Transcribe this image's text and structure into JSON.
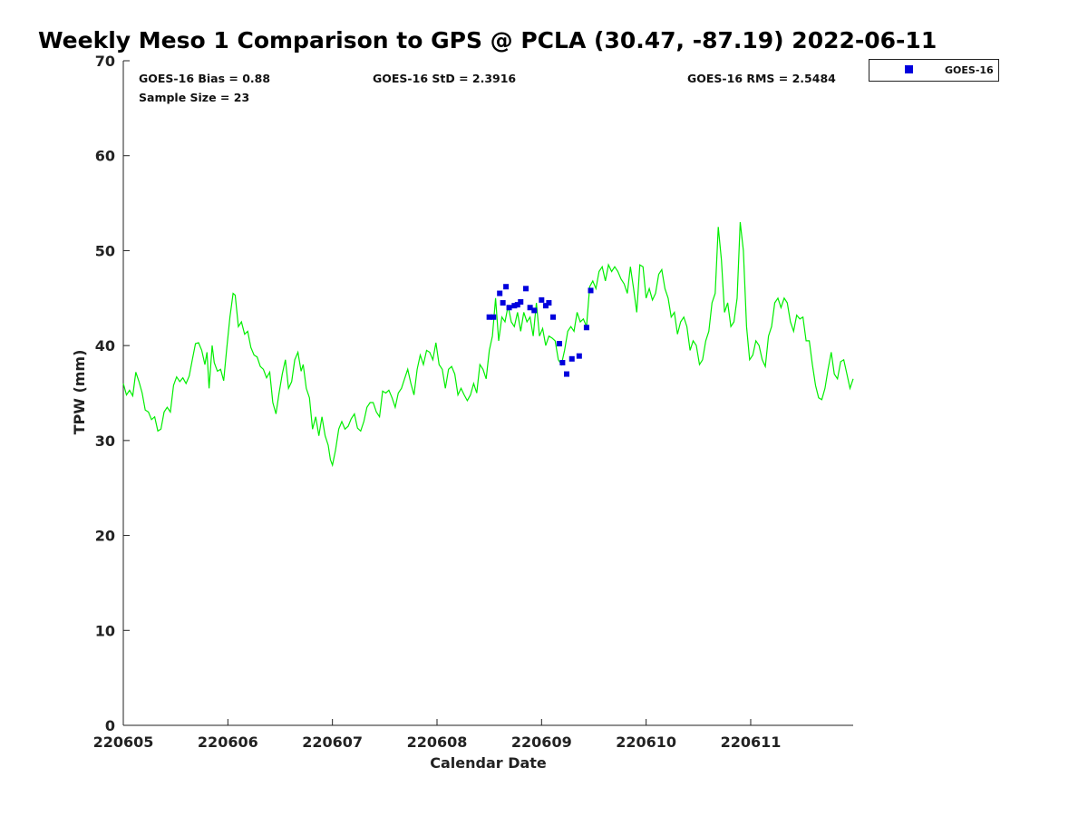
{
  "chart_data": {
    "type": "scatter",
    "title": "Weekly Meso 1 Comparison to GPS @ PCLA (30.47, -87.19) 2022-06-11",
    "xlabel": "Calendar Date",
    "ylabel": "TPW (mm)",
    "xlim": [
      0,
      6.98
    ],
    "ylim": [
      0,
      70
    ],
    "x_ticks": [
      0,
      1,
      2,
      3,
      4,
      5,
      6
    ],
    "x_tick_labels": [
      "220605",
      "220606",
      "220607",
      "220608",
      "220609",
      "220610",
      "220611"
    ],
    "y_ticks": [
      0,
      10,
      20,
      30,
      40,
      50,
      60,
      70
    ],
    "y_tick_labels": [
      "0",
      "10",
      "20",
      "30",
      "40",
      "50",
      "60",
      "70"
    ],
    "x_units": "days since 220605",
    "grid": false,
    "legend_position": "top-right-outside",
    "stats": {
      "bias": "GOES-16 Bias = 0.88",
      "std": "GOES-16 StD = 2.3916",
      "rms": "GOES-16 RMS = 2.5484",
      "sample_size": "Sample Size = 23"
    },
    "series": [
      {
        "name": "GPS",
        "kind": "line",
        "color": "#00ee00",
        "points": [
          [
            0.0,
            36.0
          ],
          [
            0.03,
            34.8
          ],
          [
            0.06,
            35.3
          ],
          [
            0.09,
            34.7
          ],
          [
            0.12,
            37.2
          ],
          [
            0.15,
            36.2
          ],
          [
            0.18,
            35.0
          ],
          [
            0.21,
            33.2
          ],
          [
            0.24,
            33.0
          ],
          [
            0.27,
            32.2
          ],
          [
            0.3,
            32.5
          ],
          [
            0.33,
            31.0
          ],
          [
            0.36,
            31.2
          ],
          [
            0.39,
            33.0
          ],
          [
            0.42,
            33.5
          ],
          [
            0.45,
            33.0
          ],
          [
            0.48,
            35.8
          ],
          [
            0.51,
            36.7
          ],
          [
            0.54,
            36.2
          ],
          [
            0.57,
            36.6
          ],
          [
            0.6,
            36.0
          ],
          [
            0.63,
            36.8
          ],
          [
            0.66,
            38.5
          ],
          [
            0.69,
            40.2
          ],
          [
            0.72,
            40.3
          ],
          [
            0.75,
            39.5
          ],
          [
            0.78,
            38.0
          ],
          [
            0.8,
            39.3
          ],
          [
            0.82,
            35.5
          ],
          [
            0.85,
            40.0
          ],
          [
            0.87,
            38.2
          ],
          [
            0.9,
            37.3
          ],
          [
            0.93,
            37.5
          ],
          [
            0.96,
            36.3
          ],
          [
            0.99,
            39.8
          ],
          [
            1.02,
            43.0
          ],
          [
            1.05,
            45.5
          ],
          [
            1.07,
            45.3
          ],
          [
            1.1,
            42.0
          ],
          [
            1.13,
            42.5
          ],
          [
            1.16,
            41.2
          ],
          [
            1.19,
            41.5
          ],
          [
            1.22,
            39.8
          ],
          [
            1.25,
            39.0
          ],
          [
            1.28,
            38.8
          ],
          [
            1.31,
            37.8
          ],
          [
            1.34,
            37.5
          ],
          [
            1.37,
            36.6
          ],
          [
            1.4,
            37.2
          ],
          [
            1.43,
            34.0
          ],
          [
            1.46,
            32.8
          ],
          [
            1.49,
            35.0
          ],
          [
            1.52,
            37.0
          ],
          [
            1.55,
            38.5
          ],
          [
            1.58,
            35.5
          ],
          [
            1.61,
            36.2
          ],
          [
            1.64,
            38.5
          ],
          [
            1.67,
            39.3
          ],
          [
            1.7,
            37.3
          ],
          [
            1.72,
            38.0
          ],
          [
            1.75,
            35.5
          ],
          [
            1.78,
            34.5
          ],
          [
            1.81,
            31.2
          ],
          [
            1.84,
            32.5
          ],
          [
            1.87,
            30.5
          ],
          [
            1.9,
            32.5
          ],
          [
            1.93,
            30.5
          ],
          [
            1.96,
            29.5
          ],
          [
            1.98,
            28.0
          ],
          [
            2.0,
            27.4
          ],
          [
            2.03,
            29.0
          ],
          [
            2.06,
            31.2
          ],
          [
            2.09,
            32.0
          ],
          [
            2.12,
            31.2
          ],
          [
            2.15,
            31.5
          ],
          [
            2.18,
            32.3
          ],
          [
            2.21,
            32.8
          ],
          [
            2.24,
            31.3
          ],
          [
            2.27,
            31.0
          ],
          [
            2.3,
            32.0
          ],
          [
            2.33,
            33.5
          ],
          [
            2.36,
            34.0
          ],
          [
            2.39,
            34.0
          ],
          [
            2.42,
            33.0
          ],
          [
            2.45,
            32.5
          ],
          [
            2.48,
            35.2
          ],
          [
            2.51,
            35.0
          ],
          [
            2.54,
            35.3
          ],
          [
            2.57,
            34.5
          ],
          [
            2.6,
            33.5
          ],
          [
            2.63,
            35.0
          ],
          [
            2.66,
            35.5
          ],
          [
            2.69,
            36.5
          ],
          [
            2.72,
            37.5
          ],
          [
            2.75,
            36.0
          ],
          [
            2.78,
            34.8
          ],
          [
            2.81,
            37.5
          ],
          [
            2.84,
            39.0
          ],
          [
            2.87,
            38.0
          ],
          [
            2.9,
            39.5
          ],
          [
            2.93,
            39.3
          ],
          [
            2.96,
            38.5
          ],
          [
            2.99,
            40.3
          ],
          [
            3.02,
            38.0
          ],
          [
            3.05,
            37.5
          ],
          [
            3.08,
            35.5
          ],
          [
            3.11,
            37.5
          ],
          [
            3.14,
            37.8
          ],
          [
            3.17,
            37.0
          ],
          [
            3.2,
            34.8
          ],
          [
            3.23,
            35.5
          ],
          [
            3.26,
            34.8
          ],
          [
            3.29,
            34.2
          ],
          [
            3.32,
            34.8
          ],
          [
            3.35,
            36.0
          ],
          [
            3.38,
            35.0
          ],
          [
            3.41,
            38.0
          ],
          [
            3.44,
            37.5
          ],
          [
            3.47,
            36.5
          ],
          [
            3.5,
            39.5
          ],
          [
            3.53,
            41.0
          ],
          [
            3.56,
            45.0
          ],
          [
            3.59,
            40.5
          ],
          [
            3.62,
            43.0
          ],
          [
            3.65,
            42.5
          ],
          [
            3.68,
            44.2
          ],
          [
            3.71,
            42.5
          ],
          [
            3.74,
            42.0
          ],
          [
            3.77,
            43.5
          ],
          [
            3.8,
            41.5
          ],
          [
            3.83,
            43.5
          ],
          [
            3.86,
            42.5
          ],
          [
            3.89,
            43.0
          ],
          [
            3.92,
            41.0
          ],
          [
            3.95,
            44.5
          ],
          [
            3.98,
            41.0
          ],
          [
            4.01,
            41.8
          ],
          [
            4.04,
            40.0
          ],
          [
            4.07,
            41.0
          ],
          [
            4.1,
            40.8
          ],
          [
            4.13,
            40.5
          ],
          [
            4.16,
            38.5
          ],
          [
            4.19,
            38.0
          ],
          [
            4.22,
            39.5
          ],
          [
            4.25,
            41.5
          ],
          [
            4.28,
            42.0
          ],
          [
            4.31,
            41.5
          ],
          [
            4.34,
            43.5
          ],
          [
            4.37,
            42.5
          ],
          [
            4.4,
            42.8
          ],
          [
            4.43,
            42.0
          ],
          [
            4.46,
            46.2
          ],
          [
            4.49,
            46.8
          ],
          [
            4.52,
            46.0
          ],
          [
            4.55,
            47.8
          ],
          [
            4.58,
            48.3
          ],
          [
            4.61,
            46.8
          ],
          [
            4.64,
            48.5
          ],
          [
            4.67,
            47.8
          ],
          [
            4.7,
            48.3
          ],
          [
            4.73,
            47.8
          ],
          [
            4.76,
            47.0
          ],
          [
            4.79,
            46.5
          ],
          [
            4.82,
            45.5
          ],
          [
            4.85,
            48.3
          ],
          [
            4.88,
            46.0
          ],
          [
            4.91,
            43.5
          ],
          [
            4.94,
            48.5
          ],
          [
            4.97,
            48.3
          ],
          [
            5.0,
            45.0
          ],
          [
            5.03,
            46.0
          ],
          [
            5.06,
            44.8
          ],
          [
            5.09,
            45.5
          ],
          [
            5.12,
            47.5
          ],
          [
            5.15,
            48.0
          ],
          [
            5.18,
            46.0
          ],
          [
            5.21,
            45.0
          ],
          [
            5.24,
            43.0
          ],
          [
            5.27,
            43.5
          ],
          [
            5.3,
            41.2
          ],
          [
            5.33,
            42.5
          ],
          [
            5.36,
            43.0
          ],
          [
            5.39,
            42.0
          ],
          [
            5.42,
            39.5
          ],
          [
            5.45,
            40.5
          ],
          [
            5.48,
            40.0
          ],
          [
            5.51,
            38.0
          ],
          [
            5.54,
            38.5
          ],
          [
            5.57,
            40.5
          ],
          [
            5.6,
            41.5
          ],
          [
            5.63,
            44.5
          ],
          [
            5.66,
            45.5
          ],
          [
            5.69,
            52.5
          ],
          [
            5.72,
            49.0
          ],
          [
            5.75,
            43.5
          ],
          [
            5.78,
            44.5
          ],
          [
            5.81,
            42.0
          ],
          [
            5.84,
            42.5
          ],
          [
            5.87,
            45.0
          ],
          [
            5.9,
            53.0
          ],
          [
            5.93,
            50.0
          ],
          [
            5.96,
            42.0
          ],
          [
            5.99,
            38.5
          ],
          [
            6.02,
            39.0
          ],
          [
            6.05,
            40.5
          ],
          [
            6.08,
            40.0
          ],
          [
            6.11,
            38.5
          ],
          [
            6.14,
            37.8
          ],
          [
            6.17,
            41.0
          ],
          [
            6.2,
            42.0
          ],
          [
            6.23,
            44.5
          ],
          [
            6.26,
            45.0
          ],
          [
            6.29,
            44.0
          ],
          [
            6.32,
            45.0
          ],
          [
            6.35,
            44.5
          ],
          [
            6.38,
            42.5
          ],
          [
            6.41,
            41.5
          ],
          [
            6.44,
            43.2
          ],
          [
            6.47,
            42.8
          ],
          [
            6.5,
            43.0
          ],
          [
            6.53,
            40.5
          ],
          [
            6.56,
            40.5
          ],
          [
            6.59,
            38.0
          ],
          [
            6.62,
            35.8
          ],
          [
            6.65,
            34.5
          ],
          [
            6.68,
            34.3
          ],
          [
            6.71,
            35.5
          ],
          [
            6.74,
            37.5
          ],
          [
            6.77,
            39.3
          ],
          [
            6.8,
            37.0
          ],
          [
            6.83,
            36.5
          ],
          [
            6.86,
            38.3
          ],
          [
            6.89,
            38.5
          ],
          [
            6.92,
            37.0
          ],
          [
            6.95,
            35.5
          ],
          [
            6.98,
            36.5
          ]
        ]
      },
      {
        "name": "GOES-16",
        "kind": "scatter",
        "marker": "square",
        "color": "#0000dd",
        "points": [
          [
            3.5,
            43.0
          ],
          [
            3.54,
            43.0
          ],
          [
            3.6,
            45.5
          ],
          [
            3.63,
            44.5
          ],
          [
            3.66,
            46.2
          ],
          [
            3.69,
            44.0
          ],
          [
            3.74,
            44.2
          ],
          [
            3.77,
            44.3
          ],
          [
            3.8,
            44.6
          ],
          [
            3.85,
            46.0
          ],
          [
            3.89,
            44.0
          ],
          [
            3.93,
            43.7
          ],
          [
            4.0,
            44.8
          ],
          [
            4.04,
            44.2
          ],
          [
            4.07,
            44.5
          ],
          [
            4.11,
            43.0
          ],
          [
            4.17,
            40.2
          ],
          [
            4.2,
            38.2
          ],
          [
            4.24,
            37.0
          ],
          [
            4.29,
            38.6
          ],
          [
            4.36,
            38.9
          ],
          [
            4.43,
            41.9
          ],
          [
            4.47,
            45.8
          ]
        ]
      }
    ]
  }
}
